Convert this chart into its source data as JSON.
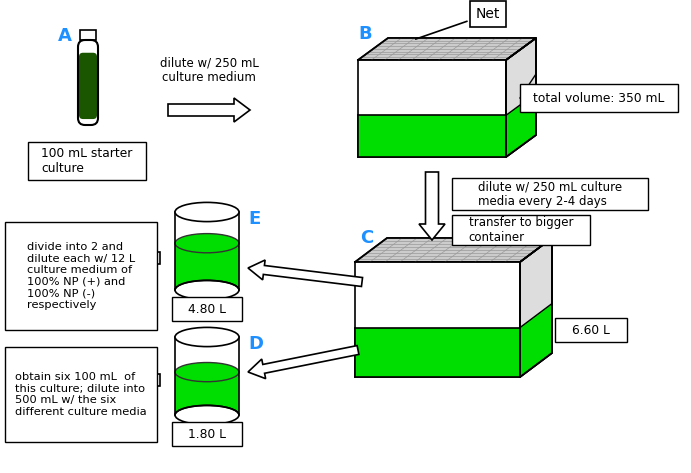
{
  "bg_color": "#ffffff",
  "cyan_color": "#1e90ff",
  "green_dark": "#1a5500",
  "green_bright": "#00dd00",
  "gray_light": "#cccccc",
  "gray_right": "#dddddd",
  "text_color": "#000000",
  "label_A": "A",
  "label_B": "B",
  "label_C": "C",
  "label_D": "D",
  "label_E": "E",
  "text_box1": "100 mL starter\nculture",
  "text_arrow1": "dilute w/ 250 mL\nculture medium",
  "text_box2": "total volume: 350 mL",
  "text_box3": "dilute w/ 250 mL culture\nmedia every 2-4 days",
  "text_box4": "transfer to bigger\ncontainer",
  "text_box5": "4.80 L",
  "text_box6": "1.80 L",
  "text_box7": "6.60 L",
  "text_net": "Net",
  "text_left_E": "divide into 2 and\ndilute each w/ 12 L\nculture medium of\n100% NP (+) and\n100% NP (-)\nrespectively",
  "text_left_D": "obtain six 100 mL  of\nthis culture; dilute into\n500 mL w/ the six\ndifferent culture media"
}
